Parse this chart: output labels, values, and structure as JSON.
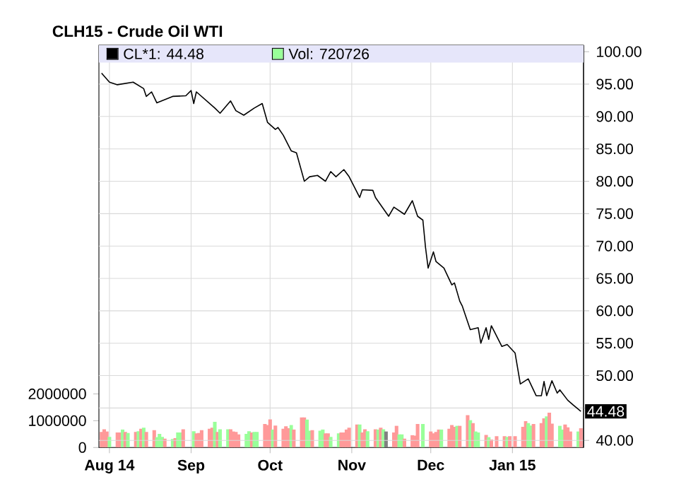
{
  "chart_data": {
    "type": "line",
    "title": "CLH15 - Crude Oil WTI",
    "xlim": [
      "2014-07-28",
      "2015-01-28"
    ],
    "xticks": [
      {
        "value": "2014-08-01",
        "label": "Aug 14"
      },
      {
        "value": "2014-09-01",
        "label": "Sep"
      },
      {
        "value": "2014-10-01",
        "label": "Oct"
      },
      {
        "value": "2014-11-01",
        "label": "Nov"
      },
      {
        "value": "2014-12-01",
        "label": "Dec"
      },
      {
        "value": "2015-01-01",
        "label": "Jan 15"
      }
    ],
    "ylim": [
      0,
      15000000
    ],
    "yticks": [
      0,
      1000000,
      2000000
    ],
    "y2lim": [
      38.9,
      101
    ],
    "y2ticks": [
      {
        "value": 40,
        "label": "40.00"
      },
      {
        "value": 45,
        "label": null
      },
      {
        "value": 50,
        "label": "50.00"
      },
      {
        "value": 55,
        "label": "55.00"
      },
      {
        "value": 60,
        "label": "60.00"
      },
      {
        "value": 65,
        "label": "65.00"
      },
      {
        "value": 70,
        "label": "70.00"
      },
      {
        "value": 75,
        "label": "75.00"
      },
      {
        "value": 80,
        "label": "80.00"
      },
      {
        "value": 85,
        "label": "85.00"
      },
      {
        "value": 90,
        "label": "90.00"
      },
      {
        "value": 95,
        "label": "95.00"
      },
      {
        "value": 100,
        "label": "100.00"
      }
    ],
    "grid": true,
    "legend": "top",
    "series": [
      {
        "name": "CL*1: 44.48",
        "axis": "y2",
        "color": "#000000",
        "x": [
          "2014-07-29",
          "2014-08-01",
          "2014-08-04",
          "2014-08-10",
          "2014-08-14",
          "2014-08-15",
          "2014-08-17",
          "2014-08-19",
          "2014-08-25",
          "2014-08-30",
          "2014-09-01",
          "2014-09-02",
          "2014-09-03",
          "2014-09-10",
          "2014-09-12",
          "2014-09-16",
          "2014-09-18",
          "2014-09-21",
          "2014-09-25",
          "2014-09-28",
          "2014-09-30",
          "2014-10-03",
          "2014-10-04",
          "2014-10-06",
          "2014-10-09",
          "2014-10-11",
          "2014-10-14",
          "2014-10-16",
          "2014-10-19",
          "2014-10-22",
          "2014-10-24",
          "2014-10-26",
          "2014-10-29",
          "2014-10-31",
          "2014-11-04",
          "2014-11-05",
          "2014-11-09",
          "2014-11-10",
          "2014-11-15",
          "2014-11-17",
          "2014-11-21",
          "2014-11-24",
          "2014-11-26",
          "2014-11-28",
          "2014-11-29",
          "2014-11-30",
          "2014-12-02",
          "2014-12-03",
          "2014-12-06",
          "2014-12-09",
          "2014-12-10",
          "2014-12-12",
          "2014-12-13",
          "2014-12-16",
          "2014-12-19",
          "2014-12-20",
          "2014-12-22",
          "2014-12-23",
          "2014-12-24",
          "2014-12-28",
          "2014-12-30",
          "2015-01-02",
          "2015-01-04",
          "2015-01-07",
          "2015-01-10",
          "2015-01-12",
          "2015-01-13",
          "2015-01-14",
          "2015-01-16",
          "2015-01-18",
          "2015-01-19",
          "2015-01-22",
          "2015-01-24",
          "2015-01-27"
        ],
        "values": [
          96.7,
          95.3,
          94.9,
          95.3,
          94.3,
          93.1,
          93.8,
          92.1,
          93.1,
          93.2,
          94.0,
          92.0,
          93.8,
          91.3,
          90.5,
          92.4,
          90.9,
          90.2,
          91.3,
          92.0,
          89.1,
          88.0,
          88.3,
          87.1,
          84.7,
          84.4,
          80.0,
          80.7,
          80.9,
          80.0,
          81.5,
          80.7,
          81.8,
          80.7,
          77.5,
          78.7,
          78.6,
          77.5,
          74.6,
          76.0,
          74.9,
          77.0,
          74.6,
          74.0,
          69.8,
          66.6,
          69.1,
          67.6,
          66.6,
          64.0,
          64.3,
          61.5,
          60.7,
          57.1,
          57.4,
          55.0,
          57.4,
          55.6,
          57.7,
          54.5,
          54.8,
          53.5,
          48.7,
          49.5,
          46.9,
          46.9,
          49.1,
          46.9,
          49.2,
          47.3,
          47.8,
          46.2,
          45.5,
          44.48
        ]
      },
      {
        "name": "Vol: 720726",
        "type": "bar",
        "color": "#99ff99",
        "x": [
          "2014-07-29",
          "2014-07-30",
          "2014-07-31",
          "2014-08-01",
          "2014-08-04",
          "2014-08-05",
          "2014-08-06",
          "2014-08-07",
          "2014-08-08",
          "2014-08-11",
          "2014-08-12",
          "2014-08-13",
          "2014-08-14",
          "2014-08-15",
          "2014-08-18",
          "2014-08-19",
          "2014-08-20",
          "2014-08-21",
          "2014-08-22",
          "2014-08-25",
          "2014-08-26",
          "2014-08-27",
          "2014-08-28",
          "2014-08-29",
          "2014-09-02",
          "2014-09-03",
          "2014-09-04",
          "2014-09-05",
          "2014-09-08",
          "2014-09-09",
          "2014-09-10",
          "2014-09-11",
          "2014-09-12",
          "2014-09-15",
          "2014-09-16",
          "2014-09-17",
          "2014-09-18",
          "2014-09-19",
          "2014-09-22",
          "2014-09-23",
          "2014-09-24",
          "2014-09-25",
          "2014-09-26",
          "2014-09-29",
          "2014-09-30",
          "2014-10-01",
          "2014-10-02",
          "2014-10-03",
          "2014-10-06",
          "2014-10-07",
          "2014-10-08",
          "2014-10-09",
          "2014-10-10",
          "2014-10-13",
          "2014-10-14",
          "2014-10-15",
          "2014-10-16",
          "2014-10-17",
          "2014-10-20",
          "2014-10-21",
          "2014-10-22",
          "2014-10-23",
          "2014-10-24",
          "2014-10-27",
          "2014-10-28",
          "2014-10-29",
          "2014-10-30",
          "2014-10-31",
          "2014-11-03",
          "2014-11-04",
          "2014-11-05",
          "2014-11-06",
          "2014-11-07",
          "2014-11-10",
          "2014-11-11",
          "2014-11-12",
          "2014-11-13",
          "2014-11-14",
          "2014-11-17",
          "2014-11-18",
          "2014-11-19",
          "2014-11-20",
          "2014-11-21",
          "2014-11-24",
          "2014-11-25",
          "2014-11-26",
          "2014-11-28",
          "2014-12-01",
          "2014-12-02",
          "2014-12-03",
          "2014-12-04",
          "2014-12-05",
          "2014-12-08",
          "2014-12-09",
          "2014-12-10",
          "2014-12-11",
          "2014-12-12",
          "2014-12-15",
          "2014-12-16",
          "2014-12-17",
          "2014-12-18",
          "2014-12-19",
          "2014-12-22",
          "2014-12-23",
          "2014-12-24",
          "2014-12-26",
          "2014-12-29",
          "2014-12-30",
          "2014-12-31",
          "2015-01-02",
          "2015-01-05",
          "2015-01-06",
          "2015-01-07",
          "2015-01-08",
          "2015-01-09",
          "2015-01-12",
          "2015-01-13",
          "2015-01-14",
          "2015-01-15",
          "2015-01-16",
          "2015-01-19",
          "2015-01-20",
          "2015-01-21",
          "2015-01-22",
          "2015-01-23",
          "2015-01-26",
          "2015-01-27"
        ],
        "values": [
          580000,
          680000,
          600000,
          400000,
          560000,
          560000,
          670000,
          580000,
          540000,
          580000,
          610000,
          700000,
          740000,
          580000,
          650000,
          390000,
          510000,
          400000,
          330000,
          320000,
          350000,
          560000,
          560000,
          680000,
          610000,
          530000,
          540000,
          650000,
          700000,
          740000,
          960000,
          580000,
          680000,
          680000,
          680000,
          600000,
          580000,
          490000,
          510000,
          610000,
          560000,
          580000,
          580000,
          880000,
          840000,
          1050000,
          670000,
          820000,
          700000,
          790000,
          720000,
          840000,
          670000,
          1120000,
          1120000,
          1040000,
          630000,
          650000,
          630000,
          670000,
          530000,
          530000,
          400000,
          530000,
          560000,
          560000,
          670000,
          740000,
          860000,
          860000,
          560000,
          680000,
          610000,
          680000,
          670000,
          740000,
          680000,
          600000,
          560000,
          810000,
          490000,
          490000,
          330000,
          460000,
          440000,
          880000,
          880000,
          600000,
          530000,
          580000,
          670000,
          670000,
          700000,
          840000,
          770000,
          810000,
          810000,
          1210000,
          1020000,
          910000,
          600000,
          560000,
          470000,
          390000,
          300000,
          420000,
          420000,
          400000,
          420000,
          420000,
          770000,
          980000,
          910000,
          820000,
          880000,
          910000,
          1090000,
          1160000,
          1300000,
          890000,
          810000,
          670000,
          860000,
          750000,
          600000,
          600000,
          720726
        ],
        "colors": [
          "#ff9999",
          "#ff9999",
          "#ff9999",
          "#99ff99",
          "#ff9999",
          "#ff9999",
          "#99ff99",
          "#ff9999",
          "#99ff99",
          "#ff9999",
          "#99ff99",
          "#ff9999",
          "#99ff99",
          "#ff9999",
          "#ff9999",
          "#99ff99",
          "#99ff99",
          "#99ff99",
          "#ff9999",
          "#99ff99",
          "#ff9999",
          "#99ff99",
          "#99ff99",
          "#ff9999",
          "#99ff99",
          "#ff9999",
          "#ff9999",
          "#ff9999",
          "#ff9999",
          "#ff9999",
          "#99ff99",
          "#ff9999",
          "#99ff99",
          "#99ff99",
          "#ff9999",
          "#ff9999",
          "#ff9999",
          "#ff9999",
          "#99ff99",
          "#99ff99",
          "#ff9999",
          "#99ff99",
          "#99ff99",
          "#ff9999",
          "#ff9999",
          "#ff9999",
          "#99ff99",
          "#ff9999",
          "#ff9999",
          "#ff9999",
          "#ff9999",
          "#99ff99",
          "#ff9999",
          "#ff9999",
          "#ff9999",
          "#99ff99",
          "#99ff99",
          "#ff9999",
          "#99ff99",
          "#99ff99",
          "#ff9999",
          "#ff9999",
          "#99ff99",
          "#99ff99",
          "#ff9999",
          "#ff9999",
          "#ff9999",
          "#ff9999",
          "#ff9999",
          "#99ff99",
          "#ff9999",
          "#ff9999",
          "#99ff99",
          "#ff9999",
          "#99ff99",
          "#ff9999",
          "#99ff99",
          "#808080",
          "#ff9999",
          "#ff9999",
          "#99ff99",
          "#99ff99",
          "#ff9999",
          "#ff9999",
          "#ff9999",
          "#ff9999",
          "#99ff99",
          "#ff9999",
          "#ff9999",
          "#ff9999",
          "#ff9999",
          "#99ff99",
          "#ff9999",
          "#ff9999",
          "#ff9999",
          "#99ff99",
          "#ff9999",
          "#ff9999",
          "#99ff99",
          "#ff9999",
          "#99ff99",
          "#99ff99",
          "#ff9999",
          "#99ff99",
          "#ff9999",
          "#ff9999",
          "#ff9999",
          "#99ff99",
          "#ff9999",
          "#ff9999",
          "#ff9999",
          "#ff9999",
          "#99ff99",
          "#99ff99",
          "#ff9999",
          "#ff9999",
          "#ff9999",
          "#99ff99",
          "#ff9999",
          "#ff9999",
          "#99ff99",
          "#99ff99",
          "#ff9999",
          "#ff9999",
          "#ff9999",
          "#99ff99",
          "#ff9999"
        ]
      }
    ],
    "annotations": [
      {
        "text": "44.48",
        "x": "2015-01-27",
        "y": 44.48
      }
    ]
  }
}
